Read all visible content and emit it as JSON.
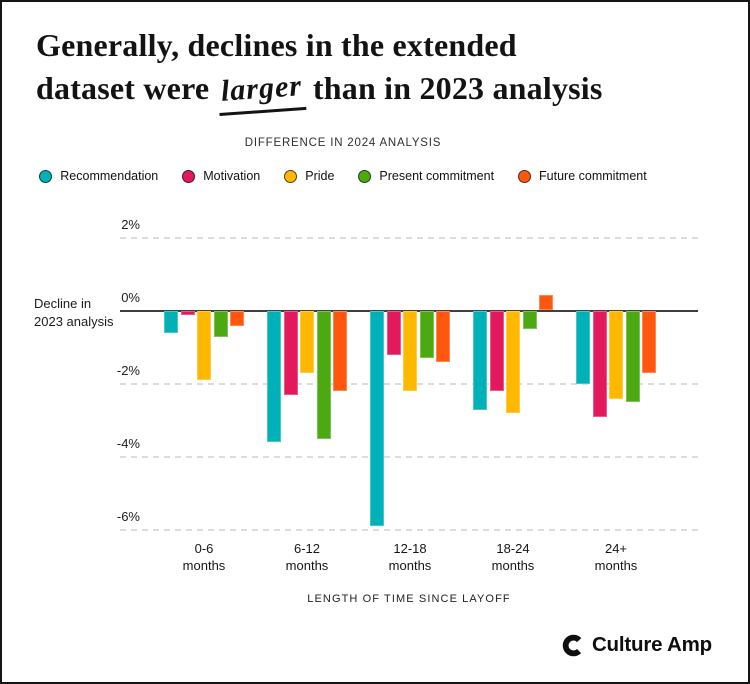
{
  "title": {
    "line1": "Generally, declines in the extended",
    "line2_before": "dataset were ",
    "line2_highlight": "larger",
    "line2_after": " than in 2023 analysis"
  },
  "chart_data": {
    "type": "bar",
    "title": "DIFFERENCE IN 2024 ANALYSIS",
    "xlabel": "LENGTH OF TIME SINCE LAYOFF",
    "y_axis_annotation": [
      "Decline in",
      "2023 analysis"
    ],
    "unit": "%",
    "ylim": [
      -6.5,
      2.5
    ],
    "grid": true,
    "legend_position": "top",
    "grid_color": "#DCDCDC",
    "zero_line_color": "#3F3F3F",
    "y_ticks": [
      {
        "label": "2%",
        "value": 2
      },
      {
        "label": "0%",
        "value": 0
      },
      {
        "label": "-2%",
        "value": -2
      },
      {
        "label": "-4%",
        "value": -4
      },
      {
        "label": "-6%",
        "value": -6
      }
    ],
    "categories": [
      {
        "line1": "0-6",
        "line2": "months"
      },
      {
        "line1": "6-12",
        "line2": "months"
      },
      {
        "line1": "12-18",
        "line2": "months"
      },
      {
        "line1": "18-24",
        "line2": "months"
      },
      {
        "line1": "24+",
        "line2": "months"
      }
    ],
    "series": [
      {
        "name": "Recommendation",
        "color": "#00B1B8",
        "values": [
          -0.6,
          -3.6,
          -5.9,
          -2.7,
          -2.0
        ]
      },
      {
        "name": "Motivation",
        "color": "#E2195C",
        "values": [
          -0.1,
          -2.3,
          -1.2,
          -2.2,
          -2.9
        ]
      },
      {
        "name": "Pride",
        "color": "#FFB800",
        "values": [
          -1.9,
          -1.7,
          -2.2,
          -2.8,
          -2.4
        ]
      },
      {
        "name": "Present commitment",
        "color": "#4DA912",
        "values": [
          -0.7,
          -3.5,
          -1.3,
          -0.5,
          -2.5
        ]
      },
      {
        "name": "Future commitment",
        "color": "#FF570F",
        "values": [
          -0.4,
          -2.2,
          -1.4,
          0.4,
          -1.7
        ]
      }
    ]
  },
  "footer": {
    "brand": "Culture Amp"
  }
}
